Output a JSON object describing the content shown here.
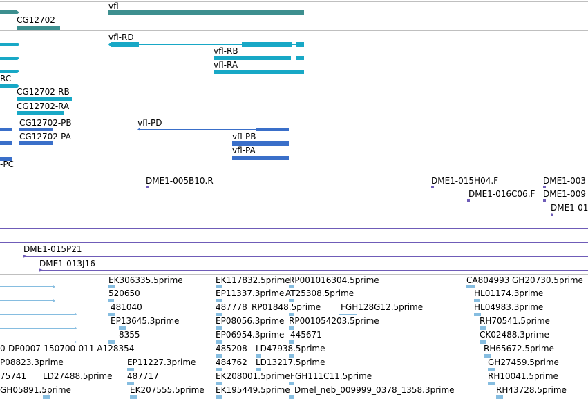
{
  "colors": {
    "gene": "#3d8f8f",
    "transcript": "#18a8c6",
    "protein": "#3a6fc9",
    "clone": "#6f5cb8",
    "est": "#86bde0",
    "separator": "#bfbfbf"
  },
  "tracks": {
    "genes": [
      "vfl",
      "CG12702"
    ],
    "transcripts": [
      "vfl-RD",
      "vfl-RB",
      "vfl-RA",
      "RC",
      "CG12702-RB",
      "CG12702-RA"
    ],
    "proteins": [
      "CG12702-PB",
      "CG12702-PA",
      "vfl-PD",
      "vfl-PB",
      "vfl-PA",
      "-PC"
    ],
    "bac_ends": [
      "DME1-005B10.R",
      "DME1-015H04.F",
      "DME1-003",
      "DME1-016C06.F",
      "DME1-009",
      "DME1-01"
    ],
    "bac_clones": [
      "DME1-015P21",
      "DME1-013J16"
    ],
    "ests": [
      "EK306335.5prime",
      "EK117832.5prime",
      "RP001016304.5prime",
      "CA804993",
      "GH20730.5prime",
      "520650",
      "EP11337.3prime",
      "AT25308.5prime",
      "HL01174.3prime",
      "481040",
      "487778",
      "RP01848.5prime",
      "FGH128G12.5prime",
      "HL04983.3prime",
      "EP13645.3prime",
      "EP08056.3prime",
      "RP001054203.5prime",
      "RH70541.5prime",
      "8355",
      "EP06954.3prime",
      "445671",
      "CK02488.3prime",
      "0-DP0007-150700-011-A128354",
      "485208",
      "LD47938.5prime",
      "RH65672.5prime",
      "P08823.3prime",
      "EP11227.3prime",
      "484762",
      "LD13217.5prime",
      "GH27459.5prime",
      "75741",
      "LD27488.5prime",
      "487717",
      "EK208001.5prime",
      "FGH111C11.5prime",
      "RH10041.5prime",
      "GH05891.5prime",
      "EK207555.5prime",
      "EK195449.5prime",
      "Dmel_neb_009999_0378_1358.3prime",
      "RH43728.5prime"
    ]
  }
}
